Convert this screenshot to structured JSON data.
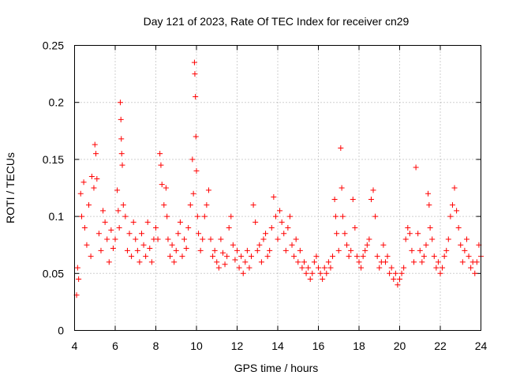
{
  "chart_data": {
    "type": "scatter",
    "title": "Day 121 of 2023, Rate Of TEC Index for receiver cn29",
    "xlabel": "GPS time / hours",
    "ylabel": "ROTI / TECUs",
    "xlim": [
      4,
      24
    ],
    "ylim": [
      0,
      0.25
    ],
    "xticks": [
      4,
      6,
      8,
      10,
      12,
      14,
      16,
      18,
      20,
      22,
      24
    ],
    "xtick_labels": [
      "4",
      "6",
      "8",
      "10",
      "12",
      "14",
      "16",
      "18",
      "20",
      "22",
      "24"
    ],
    "yticks": [
      0,
      0.05,
      0.1,
      0.15,
      0.2,
      0.25
    ],
    "ytick_labels": [
      "0",
      "0.05",
      "0.1",
      "0.15",
      "0.2",
      "0.25"
    ],
    "grid": true,
    "marker": "plus",
    "color": "#ff0000",
    "legend": false,
    "series": [
      {
        "points": [
          [
            4.1,
            0.031
          ],
          [
            4.15,
            0.055
          ],
          [
            4.2,
            0.045
          ],
          [
            4.3,
            0.12
          ],
          [
            4.35,
            0.1
          ],
          [
            4.45,
            0.13
          ],
          [
            4.5,
            0.09
          ],
          [
            4.6,
            0.075
          ],
          [
            4.7,
            0.11
          ],
          [
            4.8,
            0.065
          ],
          [
            4.85,
            0.135
          ],
          [
            4.95,
            0.125
          ],
          [
            5.0,
            0.163
          ],
          [
            5.05,
            0.155
          ],
          [
            5.1,
            0.133
          ],
          [
            5.2,
            0.085
          ],
          [
            5.3,
            0.07
          ],
          [
            5.4,
            0.105
          ],
          [
            5.5,
            0.095
          ],
          [
            5.6,
            0.08
          ],
          [
            5.7,
            0.06
          ],
          [
            5.8,
            0.088
          ],
          [
            5.9,
            0.072
          ],
          [
            6.0,
            0.08
          ],
          [
            6.1,
            0.123
          ],
          [
            6.15,
            0.105
          ],
          [
            6.2,
            0.09
          ],
          [
            6.25,
            0.2
          ],
          [
            6.28,
            0.185
          ],
          [
            6.3,
            0.168
          ],
          [
            6.32,
            0.155
          ],
          [
            6.35,
            0.145
          ],
          [
            6.4,
            0.11
          ],
          [
            6.5,
            0.1
          ],
          [
            6.6,
            0.07
          ],
          [
            6.7,
            0.085
          ],
          [
            6.8,
            0.065
          ],
          [
            6.9,
            0.095
          ],
          [
            7.0,
            0.08
          ],
          [
            7.1,
            0.07
          ],
          [
            7.2,
            0.06
          ],
          [
            7.3,
            0.085
          ],
          [
            7.4,
            0.075
          ],
          [
            7.5,
            0.065
          ],
          [
            7.6,
            0.095
          ],
          [
            7.7,
            0.072
          ],
          [
            7.8,
            0.06
          ],
          [
            7.9,
            0.08
          ],
          [
            8.0,
            0.09
          ],
          [
            8.1,
            0.08
          ],
          [
            8.2,
            0.155
          ],
          [
            8.25,
            0.145
          ],
          [
            8.3,
            0.128
          ],
          [
            8.4,
            0.11
          ],
          [
            8.5,
            0.125
          ],
          [
            8.55,
            0.1
          ],
          [
            8.6,
            0.08
          ],
          [
            8.7,
            0.065
          ],
          [
            8.8,
            0.075
          ],
          [
            8.9,
            0.06
          ],
          [
            9.0,
            0.07
          ],
          [
            9.1,
            0.085
          ],
          [
            9.2,
            0.095
          ],
          [
            9.3,
            0.065
          ],
          [
            9.4,
            0.08
          ],
          [
            9.5,
            0.072
          ],
          [
            9.6,
            0.09
          ],
          [
            9.7,
            0.11
          ],
          [
            9.8,
            0.15
          ],
          [
            9.85,
            0.12
          ],
          [
            9.9,
            0.235
          ],
          [
            9.92,
            0.225
          ],
          [
            9.95,
            0.205
          ],
          [
            9.97,
            0.17
          ],
          [
            10.0,
            0.14
          ],
          [
            10.05,
            0.1
          ],
          [
            10.1,
            0.085
          ],
          [
            10.2,
            0.07
          ],
          [
            10.3,
            0.08
          ],
          [
            10.4,
            0.1
          ],
          [
            10.5,
            0.11
          ],
          [
            10.6,
            0.123
          ],
          [
            10.7,
            0.08
          ],
          [
            10.8,
            0.065
          ],
          [
            10.9,
            0.07
          ],
          [
            11.0,
            0.06
          ],
          [
            11.1,
            0.055
          ],
          [
            11.2,
            0.08
          ],
          [
            11.3,
            0.068
          ],
          [
            11.4,
            0.058
          ],
          [
            11.5,
            0.065
          ],
          [
            11.6,
            0.09
          ],
          [
            11.7,
            0.1
          ],
          [
            11.8,
            0.075
          ],
          [
            11.9,
            0.062
          ],
          [
            12.0,
            0.07
          ],
          [
            12.1,
            0.055
          ],
          [
            12.2,
            0.065
          ],
          [
            12.3,
            0.05
          ],
          [
            12.4,
            0.06
          ],
          [
            12.5,
            0.07
          ],
          [
            12.6,
            0.055
          ],
          [
            12.7,
            0.065
          ],
          [
            12.8,
            0.11
          ],
          [
            12.9,
            0.095
          ],
          [
            13.0,
            0.07
          ],
          [
            13.1,
            0.075
          ],
          [
            13.2,
            0.06
          ],
          [
            13.3,
            0.08
          ],
          [
            13.4,
            0.085
          ],
          [
            13.5,
            0.065
          ],
          [
            13.6,
            0.07
          ],
          [
            13.7,
            0.09
          ],
          [
            13.8,
            0.117
          ],
          [
            13.9,
            0.1
          ],
          [
            14.0,
            0.08
          ],
          [
            14.1,
            0.105
          ],
          [
            14.2,
            0.095
          ],
          [
            14.3,
            0.085
          ],
          [
            14.4,
            0.07
          ],
          [
            14.5,
            0.09
          ],
          [
            14.6,
            0.1
          ],
          [
            14.7,
            0.075
          ],
          [
            14.8,
            0.065
          ],
          [
            14.9,
            0.08
          ],
          [
            15.0,
            0.06
          ],
          [
            15.1,
            0.07
          ],
          [
            15.2,
            0.055
          ],
          [
            15.3,
            0.06
          ],
          [
            15.4,
            0.05
          ],
          [
            15.5,
            0.055
          ],
          [
            15.6,
            0.045
          ],
          [
            15.7,
            0.05
          ],
          [
            15.8,
            0.06
          ],
          [
            15.9,
            0.065
          ],
          [
            16.0,
            0.055
          ],
          [
            16.1,
            0.05
          ],
          [
            16.2,
            0.045
          ],
          [
            16.3,
            0.055
          ],
          [
            16.4,
            0.05
          ],
          [
            16.5,
            0.06
          ],
          [
            16.6,
            0.055
          ],
          [
            16.7,
            0.065
          ],
          [
            16.8,
            0.115
          ],
          [
            16.85,
            0.1
          ],
          [
            16.9,
            0.085
          ],
          [
            17.0,
            0.07
          ],
          [
            17.1,
            0.16
          ],
          [
            17.15,
            0.125
          ],
          [
            17.2,
            0.1
          ],
          [
            17.3,
            0.085
          ],
          [
            17.4,
            0.075
          ],
          [
            17.5,
            0.065
          ],
          [
            17.6,
            0.07
          ],
          [
            17.7,
            0.115
          ],
          [
            17.8,
            0.09
          ],
          [
            17.9,
            0.065
          ],
          [
            18.0,
            0.06
          ],
          [
            18.1,
            0.055
          ],
          [
            18.2,
            0.065
          ],
          [
            18.3,
            0.07
          ],
          [
            18.4,
            0.075
          ],
          [
            18.5,
            0.08
          ],
          [
            18.6,
            0.115
          ],
          [
            18.7,
            0.123
          ],
          [
            18.8,
            0.1
          ],
          [
            18.9,
            0.065
          ],
          [
            19.0,
            0.055
          ],
          [
            19.1,
            0.06
          ],
          [
            19.2,
            0.075
          ],
          [
            19.3,
            0.06
          ],
          [
            19.4,
            0.065
          ],
          [
            19.5,
            0.05
          ],
          [
            19.6,
            0.055
          ],
          [
            19.7,
            0.045
          ],
          [
            19.8,
            0.05
          ],
          [
            19.9,
            0.04
          ],
          [
            20.0,
            0.045
          ],
          [
            20.1,
            0.05
          ],
          [
            20.2,
            0.055
          ],
          [
            20.3,
            0.08
          ],
          [
            20.4,
            0.09
          ],
          [
            20.5,
            0.085
          ],
          [
            20.6,
            0.07
          ],
          [
            20.7,
            0.06
          ],
          [
            20.8,
            0.143
          ],
          [
            20.9,
            0.085
          ],
          [
            21.0,
            0.07
          ],
          [
            21.1,
            0.06
          ],
          [
            21.2,
            0.065
          ],
          [
            21.3,
            0.075
          ],
          [
            21.4,
            0.12
          ],
          [
            21.45,
            0.11
          ],
          [
            21.5,
            0.09
          ],
          [
            21.6,
            0.08
          ],
          [
            21.7,
            0.065
          ],
          [
            21.8,
            0.055
          ],
          [
            21.9,
            0.06
          ],
          [
            22.0,
            0.05
          ],
          [
            22.1,
            0.055
          ],
          [
            22.2,
            0.065
          ],
          [
            22.3,
            0.07
          ],
          [
            22.4,
            0.08
          ],
          [
            22.5,
            0.1
          ],
          [
            22.6,
            0.11
          ],
          [
            22.7,
            0.125
          ],
          [
            22.8,
            0.105
          ],
          [
            22.9,
            0.09
          ],
          [
            23.0,
            0.075
          ],
          [
            23.1,
            0.06
          ],
          [
            23.2,
            0.07
          ],
          [
            23.3,
            0.08
          ],
          [
            23.4,
            0.065
          ],
          [
            23.5,
            0.055
          ],
          [
            23.6,
            0.06
          ],
          [
            23.7,
            0.05
          ],
          [
            23.8,
            0.06
          ],
          [
            23.9,
            0.075
          ],
          [
            24.0,
            0.065
          ]
        ]
      }
    ]
  }
}
